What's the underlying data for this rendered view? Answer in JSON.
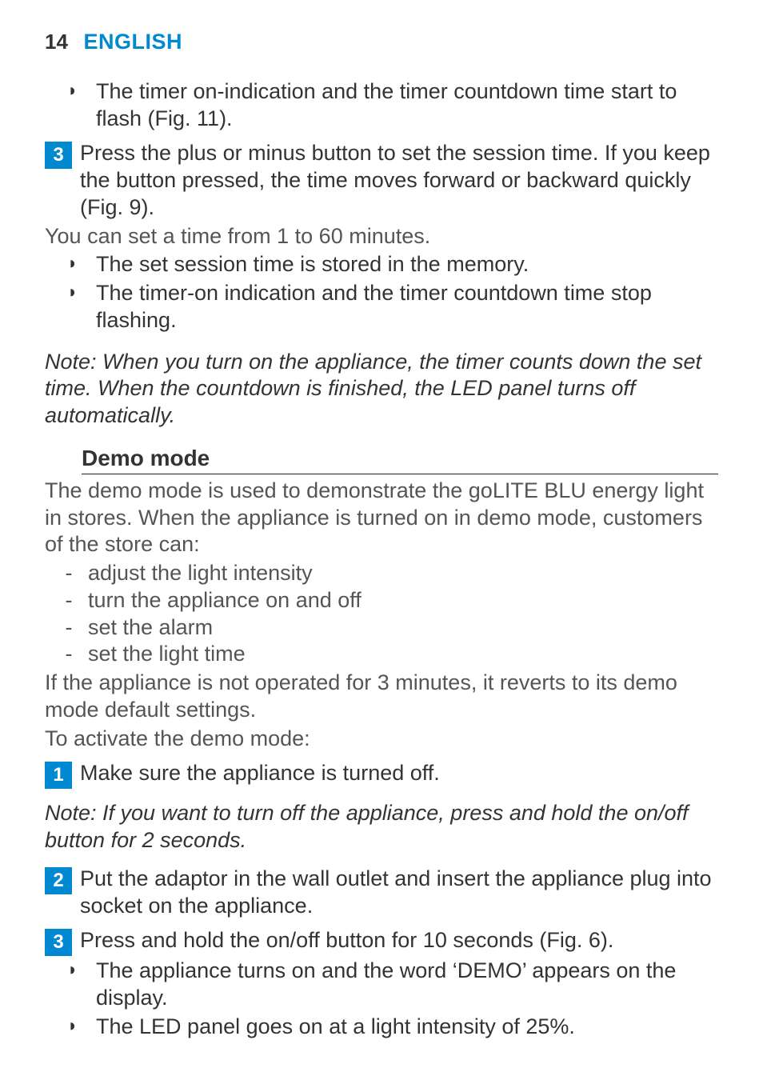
{
  "colors": {
    "accent": "#0089d0",
    "text": "#333333",
    "muted": "#555555",
    "rule": "#222222",
    "bg": "#ffffff"
  },
  "header": {
    "page": "14",
    "lang": "ENGLISH"
  },
  "top_bullet": "The timer on-indication and the timer countdown time start to flash (Fig. 11).",
  "step3_top": "Press the plus or minus button to set the session time. If you keep the button pressed, the time moves forward or backward quickly (Fig. 9).",
  "range_line": "You can set a time from 1 to 60 minutes.",
  "bullets_after_step3": [
    "The set session time is stored in the memory.",
    "The timer-on indication and the timer countdown time stop flashing."
  ],
  "note1": "Note: When you turn on the appliance, the timer counts down the set time. When the countdown is finished, the LED panel turns off automatically.",
  "demo_heading": "Demo mode",
  "demo_intro": "The demo mode is used to demonstrate the goLITE BLU energy light in stores. When the appliance is turned on in demo mode, customers of the store can:",
  "demo_dashes": [
    "adjust the light intensity",
    "turn the appliance on and off",
    "set the alarm",
    "set the light time"
  ],
  "demo_revert": "If the appliance is not operated for 3 minutes, it reverts to its demo mode default settings.",
  "demo_activate": "To activate the demo mode:",
  "step1": "Make sure the appliance is turned off.",
  "note2": "Note: If you want to turn off the appliance, press and hold the on/off button for 2 seconds.",
  "step2": "Put the adaptor in the wall outlet and insert the appliance plug into socket on the appliance.",
  "step3_bottom": "Press and hold the on/off button for 10 seconds (Fig. 6).",
  "bottom_bullets": [
    "The appliance turns on and the word ‘DEMO’ appears on the display.",
    "The LED panel goes on at a light intensity of 25%."
  ]
}
